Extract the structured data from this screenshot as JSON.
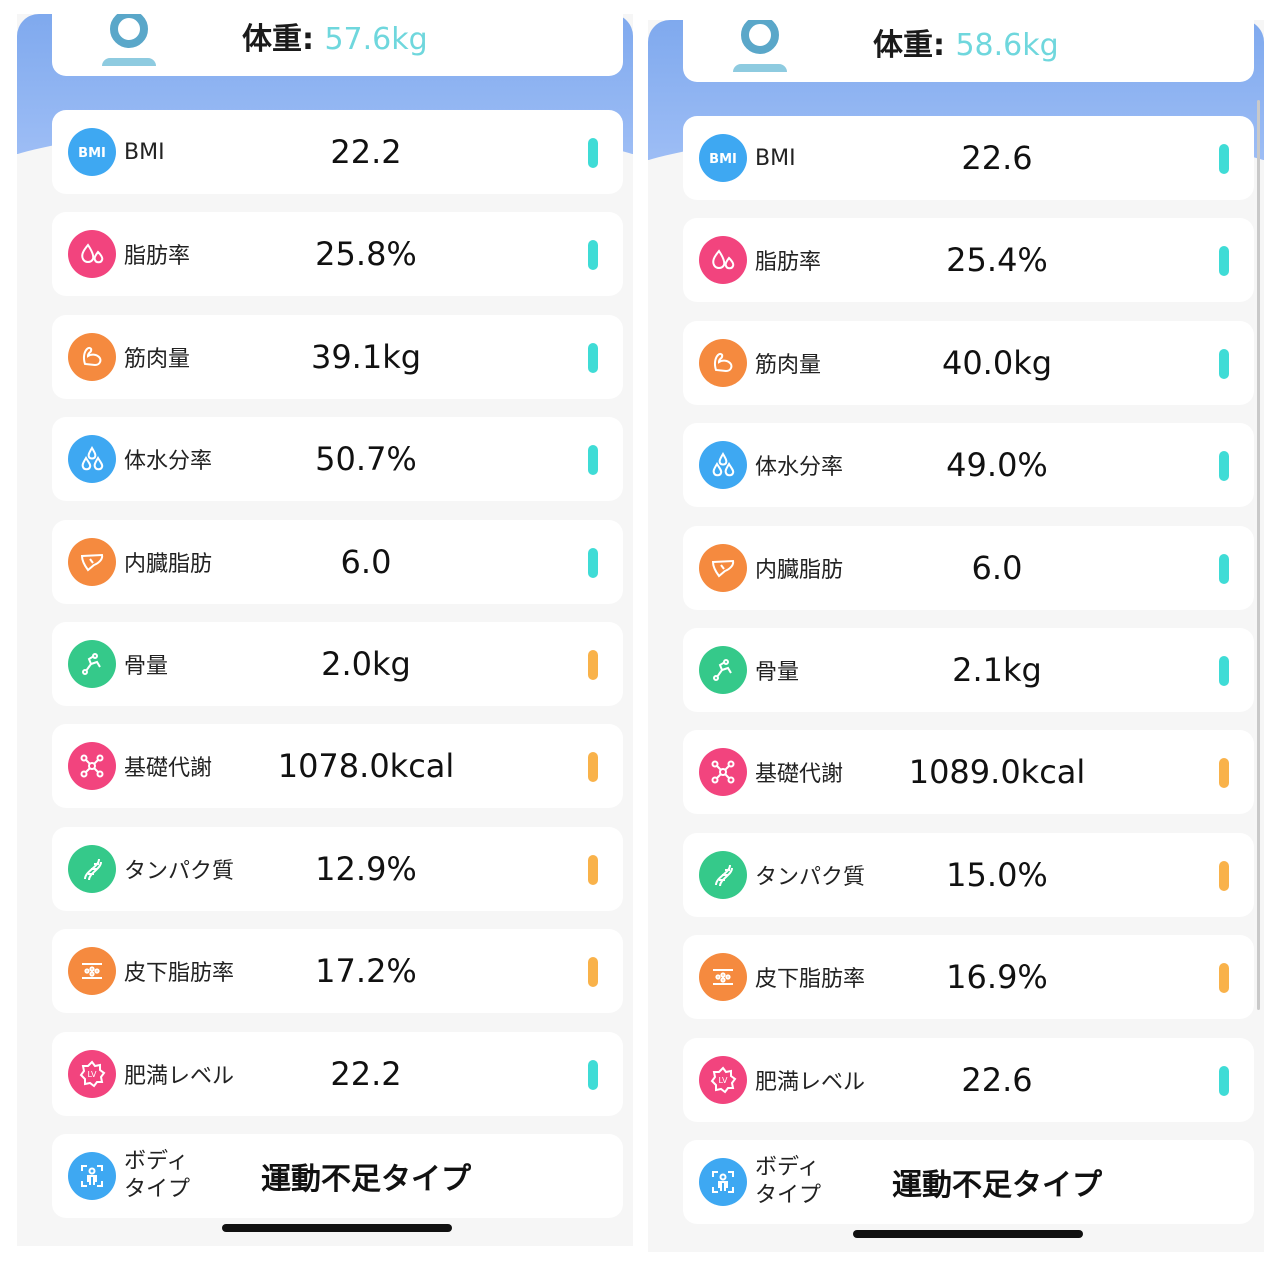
{
  "panels": [
    {
      "weight_label": "体重:",
      "weight_value": "57.6kg",
      "rows": [
        {
          "label": "BMI",
          "value": "22.2",
          "icon": "bmi-icon",
          "bar": "teal"
        },
        {
          "label": "脂肪率",
          "value": "25.8%",
          "icon": "fat-drops-icon",
          "bar": "teal"
        },
        {
          "label": "筋肉量",
          "value": "39.1kg",
          "icon": "muscle-arm-icon",
          "bar": "teal"
        },
        {
          "label": "体水分率",
          "value": "50.7%",
          "icon": "water-drops-icon",
          "bar": "teal"
        },
        {
          "label": "内臓脂肪",
          "value": "6.0",
          "icon": "liver-icon",
          "bar": "teal"
        },
        {
          "label": "骨量",
          "value": "2.0kg",
          "icon": "bone-icon",
          "bar": "orange"
        },
        {
          "label": "基礎代謝",
          "value": "1078.0kcal",
          "icon": "metabolism-molecule-icon",
          "bar": "orange"
        },
        {
          "label": "タンパク質",
          "value": "12.9%",
          "icon": "protein-dna-icon",
          "bar": "orange"
        },
        {
          "label": "皮下脂肪率",
          "value": "17.2%",
          "icon": "subcutaneous-fat-icon",
          "bar": "orange"
        },
        {
          "label": "肥満レベル",
          "value": "22.2",
          "icon": "obesity-level-icon",
          "bar": "teal"
        }
      ],
      "body_type_label_1": "ボディ",
      "body_type_label_2": "タイプ",
      "body_type_value": "運動不足タイプ"
    },
    {
      "weight_label": "体重:",
      "weight_value": "58.6kg",
      "rows": [
        {
          "label": "BMI",
          "value": "22.6",
          "icon": "bmi-icon",
          "bar": "teal"
        },
        {
          "label": "脂肪率",
          "value": "25.4%",
          "icon": "fat-drops-icon",
          "bar": "teal"
        },
        {
          "label": "筋肉量",
          "value": "40.0kg",
          "icon": "muscle-arm-icon",
          "bar": "teal"
        },
        {
          "label": "体水分率",
          "value": "49.0%",
          "icon": "water-drops-icon",
          "bar": "teal"
        },
        {
          "label": "内臓脂肪",
          "value": "6.0",
          "icon": "liver-icon",
          "bar": "teal"
        },
        {
          "label": "骨量",
          "value": "2.1kg",
          "icon": "bone-icon",
          "bar": "teal"
        },
        {
          "label": "基礎代謝",
          "value": "1089.0kcal",
          "icon": "metabolism-molecule-icon",
          "bar": "orange"
        },
        {
          "label": "タンパク質",
          "value": "15.0%",
          "icon": "protein-dna-icon",
          "bar": "orange"
        },
        {
          "label": "皮下脂肪率",
          "value": "16.9%",
          "icon": "subcutaneous-fat-icon",
          "bar": "orange"
        },
        {
          "label": "肥満レベル",
          "value": "22.6",
          "icon": "obesity-level-icon",
          "bar": "teal"
        }
      ],
      "body_type_label_1": "ボディ",
      "body_type_label_2": "タイプ",
      "body_type_value": "運動不足タイプ"
    }
  ],
  "colors": {
    "teal_indicator": "#3fdcd6",
    "orange_indicator": "#f9b24a",
    "weight_value": "#6fd7dd",
    "header_blue": "#7fa9ee"
  }
}
